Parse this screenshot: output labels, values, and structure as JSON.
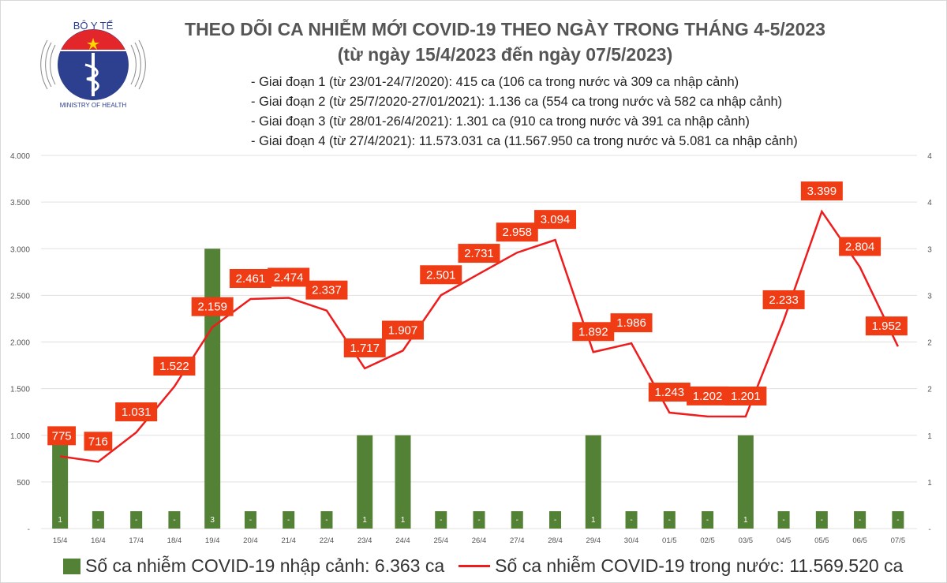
{
  "logo": {
    "top_text": "BỘ Y TẾ",
    "bottom_text": "MINISTRY OF HEALTH"
  },
  "header": {
    "title": "THEO DÕI CA NHIỄM MỚI COVID-19 THEO NGÀY TRONG THÁNG 4-5/2023",
    "subtitle": "(từ ngày 15/4/2023 đến ngày 07/5/2023)",
    "bullets": [
      "- Giai đoạn 1 (từ 23/01-24/7/2020): 415 ca (106 ca trong nước và 309 ca nhập cảnh)",
      "- Giai đoạn 2 (từ 25/7/2020-27/01/2021): 1.136 ca (554 ca trong nước và 582 ca nhập cảnh)",
      "- Giai đoạn 3 (từ 28/01-26/4/2021): 1.301 ca (910 ca trong nước và 391 ca nhập cảnh)",
      "- Giai đoạn 4 (từ 27/4/2021): 11.573.031 ca (11.567.950 ca trong nước và 5.081 ca nhập cảnh)"
    ]
  },
  "chart_data": {
    "type": "bar+line",
    "categories": [
      "15/4",
      "16/4",
      "17/4",
      "18/4",
      "19/4",
      "20/4",
      "21/4",
      "22/4",
      "23/4",
      "24/4",
      "25/4",
      "26/4",
      "27/4",
      "28/4",
      "29/4",
      "30/4",
      "01/5",
      "02/5",
      "03/5",
      "04/5",
      "05/5",
      "06/5",
      "07/5"
    ],
    "series": [
      {
        "name": "Số ca nhiễm COVID-19 nhập cảnh: 6.363 ca",
        "type": "bar",
        "axis": "right",
        "color": "#538135",
        "values": [
          1,
          0,
          0,
          0,
          3,
          0,
          0,
          0,
          1,
          1,
          0,
          0,
          0,
          0,
          1,
          0,
          0,
          0,
          1,
          0,
          0,
          0,
          0
        ],
        "labels": [
          "1",
          "-",
          "-",
          "-",
          "3",
          "-",
          "-",
          "-",
          "1",
          "1",
          "-",
          "-",
          "-",
          "-",
          "1",
          "-",
          "-",
          "-",
          "1",
          "-",
          "-",
          "-",
          "-"
        ]
      },
      {
        "name": "Số ca nhiễm COVID-19 trong nước: 11.569.520 ca",
        "type": "line",
        "axis": "left",
        "color": "#ee1c1c",
        "values": [
          775,
          716,
          1031,
          1522,
          2159,
          2461,
          2474,
          2337,
          1717,
          1907,
          2501,
          2731,
          2958,
          3094,
          1892,
          1986,
          1243,
          1202,
          1201,
          2233,
          3399,
          2804,
          1952
        ],
        "labels": [
          "775",
          "716",
          "1.031",
          "1.522",
          "2.159",
          "2.461",
          "2.474",
          "2.337",
          "1.717",
          "1.907",
          "2.501",
          "2.731",
          "2.958",
          "3.094",
          "1.892",
          "1.986",
          "1.243",
          "1.202",
          "1.201",
          "2.233",
          "3.399",
          "2.804",
          "1.952"
        ]
      }
    ],
    "y_left": {
      "range": [
        0,
        4000
      ],
      "ticks": [
        "-",
        "500",
        "1.000",
        "1.500",
        "2.000",
        "2.500",
        "3.000",
        "3.500",
        "4.000"
      ]
    },
    "y_right": {
      "range": [
        0,
        4
      ],
      "ticks": [
        "-",
        "1",
        "1",
        "2",
        "2",
        "3",
        "3",
        "4",
        "4"
      ]
    },
    "grid": true,
    "legend": "bottom",
    "label_color": "#f03c14"
  }
}
